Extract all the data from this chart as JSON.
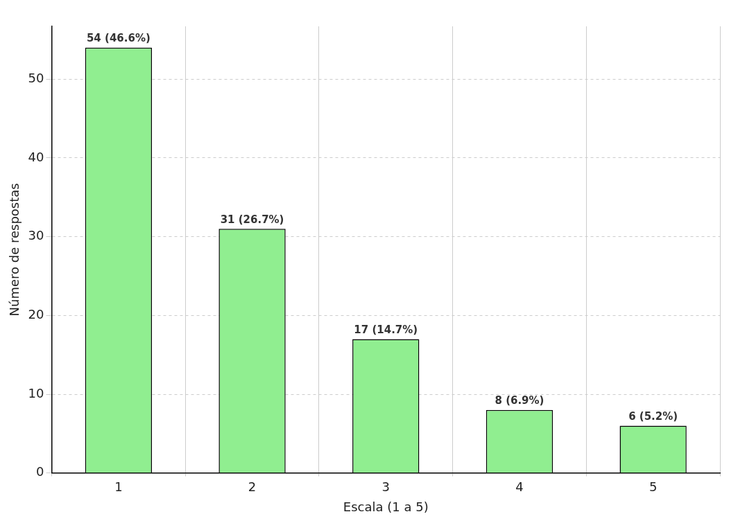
{
  "chart_data": {
    "type": "bar",
    "xlabel": "Escala (1 a 5)",
    "ylabel": "Número de respostas",
    "categories": [
      "1",
      "2",
      "3",
      "4",
      "5"
    ],
    "values": [
      54,
      31,
      17,
      8,
      6
    ],
    "value_labels": [
      "54 (46.6%)",
      "31 (26.7%)",
      "17 (14.7%)",
      "8 (6.9%)",
      "6 (5.2%)"
    ],
    "color": "#90ee90",
    "ylim": [
      0,
      56.7
    ],
    "yticks": [
      0,
      10,
      20,
      30,
      40,
      50
    ],
    "grid": true,
    "legend": false
  }
}
